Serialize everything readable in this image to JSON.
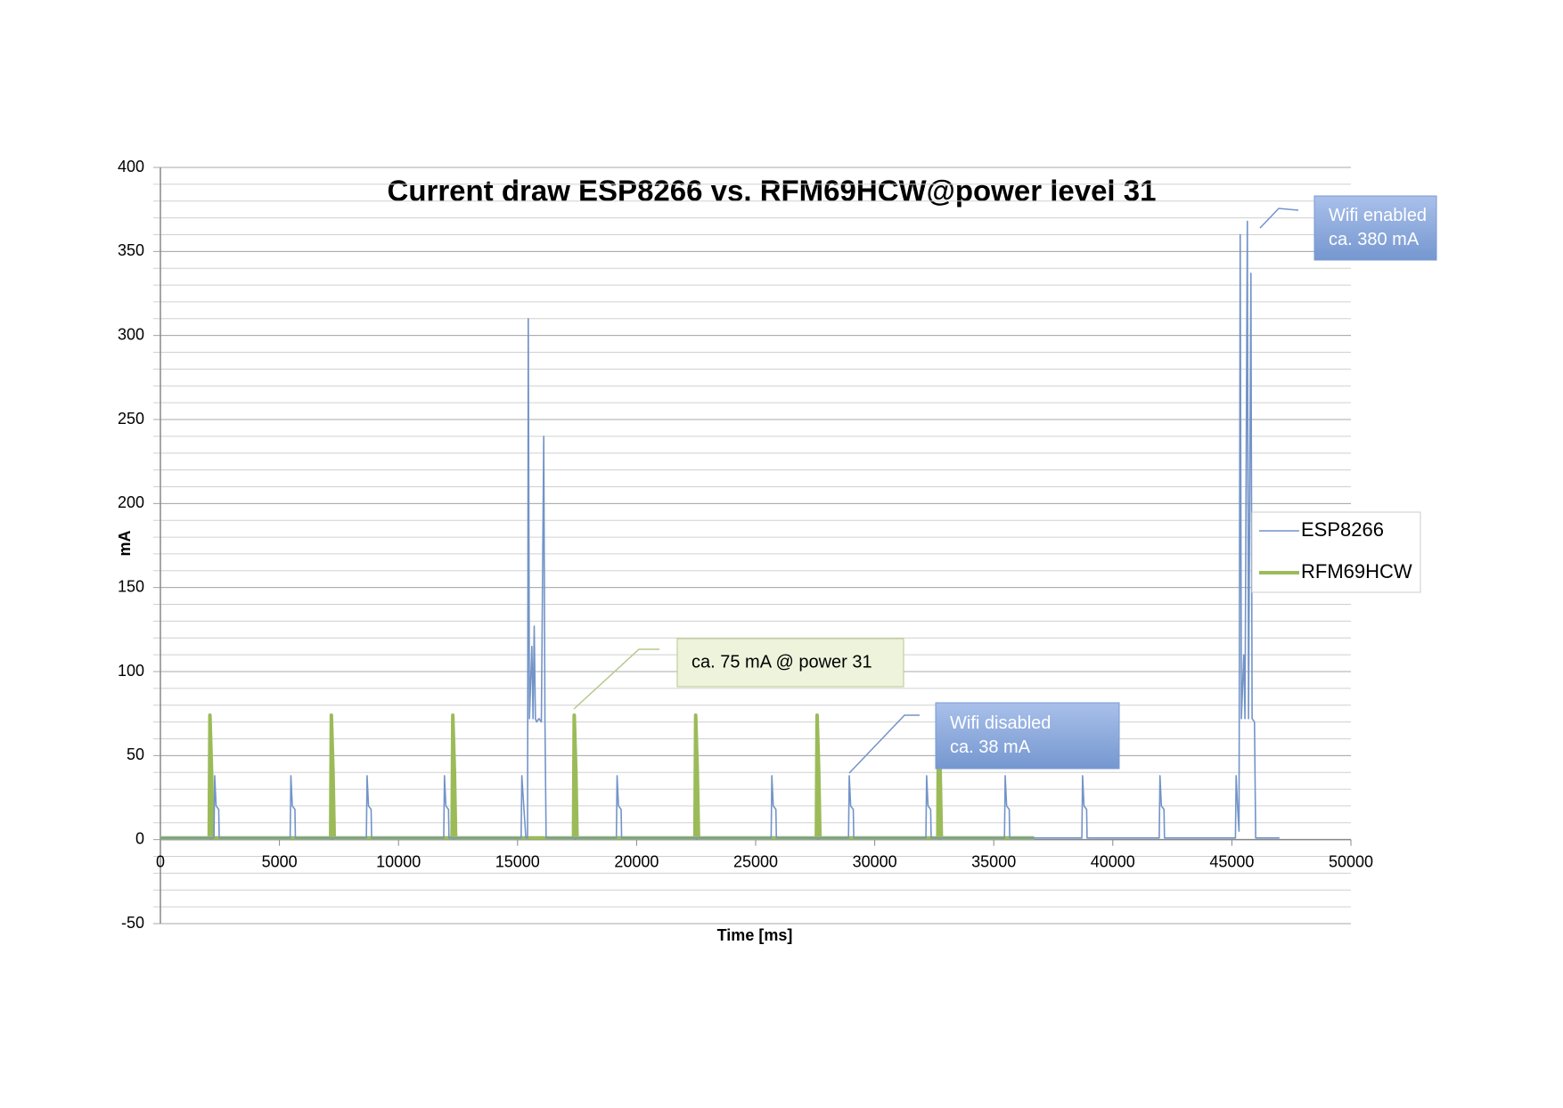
{
  "chart_data": {
    "type": "line",
    "title": "Current draw  ESP8266 vs. RFM69HCW@power level 31",
    "xlabel": "Time [ms]",
    "ylabel": "mA",
    "xlim": [
      0,
      50000
    ],
    "xticks": [
      0,
      5000,
      10000,
      15000,
      20000,
      25000,
      30000,
      35000,
      40000,
      45000,
      50000
    ],
    "ylim": [
      -50,
      400
    ],
    "yticks": [
      -50,
      0,
      50,
      100,
      150,
      200,
      250,
      300,
      350,
      400
    ],
    "minor_ystep": 10,
    "grid": true,
    "legend": "right",
    "series": [
      {
        "name": "ESP8266",
        "color": "#7394c8",
        "x": [
          0,
          2250,
          2280,
          2340,
          2450,
          2470,
          5450,
          5480,
          5540,
          5650,
          5670,
          8650,
          8680,
          8740,
          8850,
          8870,
          11900,
          11930,
          11990,
          12100,
          12120,
          15150,
          15180,
          15260,
          15350,
          15420,
          15450,
          15500,
          15600,
          15650,
          15700,
          15750,
          15800,
          15900,
          16000,
          16100,
          16150,
          16200,
          19150,
          19180,
          19240,
          19350,
          19370,
          25650,
          25680,
          25740,
          25850,
          25870,
          28900,
          28930,
          28990,
          29100,
          29120,
          32150,
          32180,
          32240,
          32350,
          32370,
          35450,
          35480,
          35540,
          35650,
          35670,
          38700,
          38730,
          38790,
          38900,
          38920,
          41950,
          41980,
          42040,
          42150,
          42170,
          45150,
          45180,
          45240,
          45300,
          45350,
          45400,
          45500,
          45550,
          45650,
          45700,
          45800,
          45850,
          45950,
          46000,
          47000
        ],
        "values": [
          1,
          1,
          38,
          20,
          18,
          1,
          1,
          38,
          20,
          18,
          1,
          1,
          38,
          20,
          18,
          1,
          1,
          38,
          20,
          18,
          1,
          1,
          38,
          20,
          1,
          1,
          310,
          72,
          115,
          72,
          127,
          72,
          70,
          72,
          70,
          240,
          72,
          1,
          1,
          38,
          20,
          18,
          1,
          1,
          38,
          20,
          18,
          1,
          1,
          38,
          20,
          18,
          1,
          1,
          38,
          20,
          18,
          1,
          1,
          38,
          20,
          18,
          1,
          1,
          38,
          20,
          18,
          1,
          1,
          38,
          20,
          18,
          1,
          1,
          38,
          20,
          5,
          360,
          72,
          110,
          72,
          368,
          72,
          337,
          72,
          70,
          1,
          1
        ]
      },
      {
        "name": "RFM69HCW",
        "color": "#9bbb59",
        "x": [
          0,
          2050,
          2080,
          2150,
          2200,
          7150,
          7180,
          7250,
          7300,
          12250,
          12280,
          12350,
          12400,
          17350,
          17380,
          17450,
          17500,
          22450,
          22480,
          22550,
          22600,
          27550,
          27580,
          27650,
          27700,
          32650,
          32680,
          32750,
          32800,
          36700
        ],
        "values": [
          1,
          1,
          74,
          40,
          1,
          1,
          74,
          40,
          1,
          1,
          74,
          40,
          1,
          1,
          74,
          40,
          1,
          1,
          74,
          40,
          1,
          1,
          74,
          40,
          1,
          1,
          74,
          40,
          1,
          1
        ]
      }
    ],
    "annotations": [
      [
        "Wifi enabled",
        "ca. 380 mA"
      ],
      [
        "ca. 75 mA @ power 31"
      ],
      [
        "Wifi disabled",
        "ca. 38 mA"
      ]
    ]
  }
}
